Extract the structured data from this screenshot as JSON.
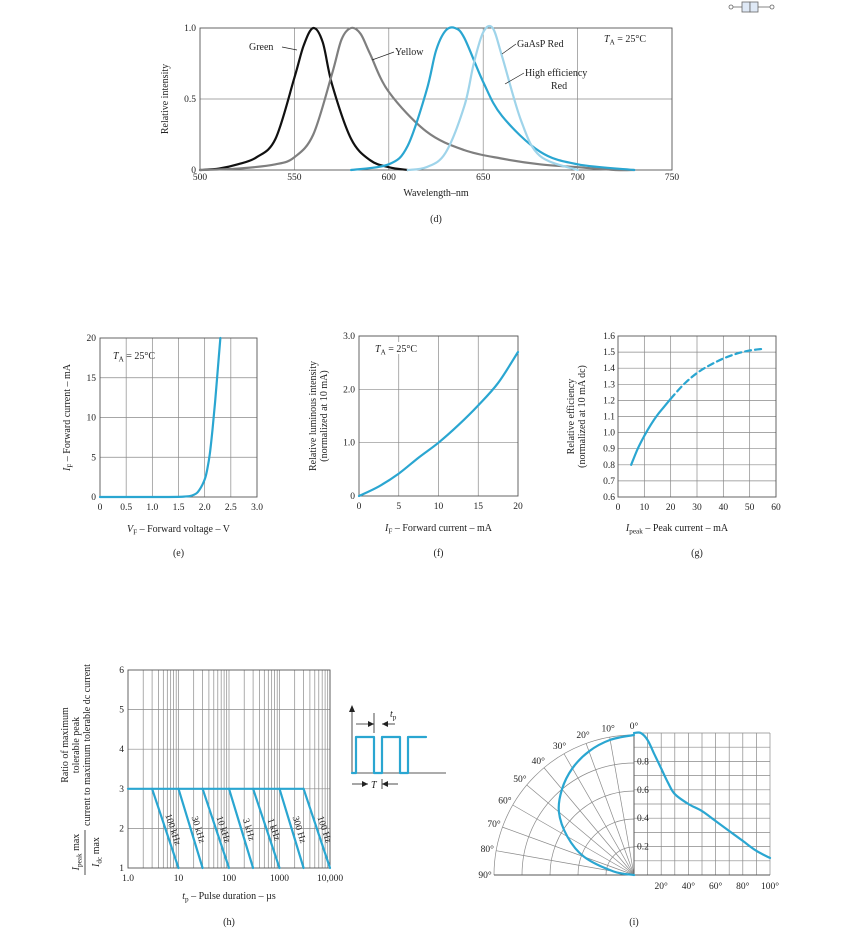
{
  "chart_data": [
    {
      "id": "d",
      "type": "line",
      "caption": "(d)",
      "annotation": "T_A = 25°C",
      "xlabel": "Wavelength–nm",
      "ylabel": "Relative intensity",
      "xlim": [
        500,
        750
      ],
      "ylim": [
        0,
        1.0
      ],
      "xticks": [
        "500",
        "550",
        "600",
        "650",
        "700",
        "750"
      ],
      "yticks": [
        "0",
        "0.5",
        "1.0"
      ],
      "grid": true,
      "colors": {
        "Green": "#111111",
        "Yellow": "#7f7f7f",
        "GaAsP Red": "#2aa6d1",
        "High efficiency Red": "#9fd4ea"
      },
      "series": [
        {
          "name": "Green",
          "x": [
            500,
            510,
            520,
            530,
            540,
            550,
            555,
            560,
            565,
            570,
            580,
            590,
            600,
            610
          ],
          "y": [
            0.0,
            0.01,
            0.04,
            0.09,
            0.22,
            0.65,
            0.88,
            1.0,
            0.9,
            0.6,
            0.22,
            0.07,
            0.02,
            0.0
          ]
        },
        {
          "name": "Yellow",
          "x": [
            500,
            520,
            540,
            550,
            560,
            570,
            575,
            580,
            585,
            590,
            600,
            620,
            640,
            660,
            680,
            700,
            720,
            730
          ],
          "y": [
            0.0,
            0.01,
            0.04,
            0.09,
            0.25,
            0.68,
            0.92,
            1.0,
            0.96,
            0.82,
            0.55,
            0.27,
            0.14,
            0.08,
            0.04,
            0.02,
            0.0,
            0.0
          ]
        },
        {
          "name": "GaAsP Red",
          "x": [
            580,
            600,
            610,
            620,
            625,
            630,
            635,
            640,
            650,
            660,
            680,
            700,
            730
          ],
          "y": [
            0.0,
            0.04,
            0.17,
            0.56,
            0.84,
            0.98,
            1.0,
            0.93,
            0.62,
            0.38,
            0.13,
            0.04,
            0.0
          ]
        },
        {
          "name": "High efficiency Red",
          "x": [
            610,
            620,
            630,
            640,
            645,
            650,
            655,
            660,
            670,
            680,
            700
          ],
          "y": [
            0.0,
            0.02,
            0.12,
            0.45,
            0.75,
            0.97,
            1.0,
            0.8,
            0.35,
            0.1,
            0.0
          ]
        }
      ],
      "labels": [
        "Green",
        "Yellow",
        "GaAsP Red",
        "High efficiency",
        "Red"
      ]
    },
    {
      "id": "e",
      "type": "line",
      "caption": "(e)",
      "annotation": "T_A = 25°C",
      "xlabel": "V_F – Forward voltage – V",
      "ylabel": "I_F – Forward current – mA",
      "xlim": [
        0,
        3.0
      ],
      "ylim": [
        0,
        20
      ],
      "xticks": [
        "0",
        "0.5",
        "1.0",
        "1.5",
        "2.0",
        "2.5",
        "3.0"
      ],
      "yticks": [
        "0",
        "5",
        "10",
        "15",
        "20"
      ],
      "grid": true,
      "series": [
        {
          "x": [
            0.0,
            1.0,
            1.6,
            1.8,
            1.9,
            2.0,
            2.05,
            2.1,
            2.15,
            2.2,
            2.25,
            2.3
          ],
          "y": [
            0.0,
            0.0,
            0.05,
            0.3,
            0.9,
            2.2,
            3.5,
            5.5,
            8.5,
            12.0,
            16.0,
            20.0
          ]
        }
      ]
    },
    {
      "id": "f",
      "type": "line",
      "caption": "(f)",
      "annotation": "T_A = 25°C",
      "xlabel": "I_F – Forward current – mA",
      "ylabel": "Relative luminous intensity (normalized at 10 mA)",
      "xlim": [
        0,
        20
      ],
      "ylim": [
        0,
        3.0
      ],
      "xticks": [
        "0",
        "5",
        "10",
        "15",
        "20"
      ],
      "yticks": [
        "0",
        "1.0",
        "2.0",
        "3.0"
      ],
      "grid": true,
      "series": [
        {
          "x": [
            0,
            2.5,
            5,
            7.5,
            10,
            12.5,
            15,
            17.5,
            20
          ],
          "y": [
            0.0,
            0.18,
            0.42,
            0.72,
            1.0,
            1.33,
            1.7,
            2.12,
            2.7
          ]
        }
      ]
    },
    {
      "id": "g",
      "type": "line",
      "caption": "(g)",
      "xlabel": "I_peak – Peak current – mA",
      "ylabel": "Relative efficiency (normalized at 10 mA dc)",
      "xlim": [
        0,
        60
      ],
      "ylim": [
        0.6,
        1.6
      ],
      "xticks": [
        "0",
        "10",
        "20",
        "30",
        "40",
        "50",
        "60"
      ],
      "yticks": [
        "0.6",
        "0.7",
        "0.8",
        "0.9",
        "1.0",
        "1.1",
        "1.2",
        "1.3",
        "1.4",
        "1.5",
        "1.6"
      ],
      "grid": true,
      "series": [
        {
          "style": "solid",
          "x": [
            5,
            7.5,
            10,
            12.5,
            15,
            17.5,
            20
          ],
          "y": [
            0.8,
            0.9,
            0.98,
            1.05,
            1.11,
            1.16,
            1.21
          ]
        },
        {
          "style": "dashed",
          "x": [
            20,
            25,
            30,
            35,
            40,
            45,
            50,
            55
          ],
          "y": [
            1.21,
            1.3,
            1.37,
            1.42,
            1.46,
            1.49,
            1.51,
            1.52
          ]
        }
      ]
    },
    {
      "id": "h",
      "type": "line",
      "caption": "(h)",
      "xlabel": "t_p – Pulse duration – µs",
      "ylabel": "Ratio of maximum tolerable peak current to maximum tolerable dc current",
      "ylabel_ratio": [
        "I_peak max",
        "I_dc max"
      ],
      "xscale": "log",
      "xlim": [
        1,
        10000
      ],
      "ylim": [
        1,
        6
      ],
      "xticks": [
        "1.0",
        "10",
        "100",
        "1000",
        "10,000"
      ],
      "yticks": [
        "1",
        "2",
        "3",
        "4",
        "5",
        "6"
      ],
      "grid": true,
      "series": [
        {
          "name": "100 kHz",
          "x": [
            3,
            10
          ],
          "y": [
            3,
            1
          ]
        },
        {
          "name": "30 kHz",
          "x": [
            10,
            30
          ],
          "y": [
            3,
            1
          ]
        },
        {
          "name": "10 kHz",
          "x": [
            30,
            100
          ],
          "y": [
            3,
            1
          ]
        },
        {
          "name": "3 kHz",
          "x": [
            100,
            300
          ],
          "y": [
            3,
            1
          ]
        },
        {
          "name": "1 kHz",
          "x": [
            300,
            1000
          ],
          "y": [
            3,
            1
          ]
        },
        {
          "name": "300 Hz",
          "x": [
            1000,
            3000
          ],
          "y": [
            3,
            1
          ]
        },
        {
          "name": "100 Hz",
          "x": [
            3000,
            10000
          ],
          "y": [
            3,
            1
          ]
        }
      ],
      "pulse_labels": {
        "tp": "t_p",
        "T": "T"
      }
    },
    {
      "id": "i",
      "type": "polar",
      "caption": "(i)",
      "angle_labels": [
        "0°",
        "10°",
        "20°",
        "30°",
        "40°",
        "50°",
        "60°",
        "70°",
        "80°",
        "90°"
      ],
      "radial_labels": [
        "0.2",
        "0.4",
        "0.6",
        "0.8"
      ],
      "bottom_labels": [
        "20°",
        "40°",
        "60°",
        "80°",
        "100°"
      ],
      "polar_series": {
        "angle_deg": [
          0,
          10,
          20,
          30,
          40,
          50,
          60,
          70,
          80,
          90
        ],
        "r": [
          1.0,
          0.98,
          0.94,
          0.88,
          0.8,
          0.7,
          0.55,
          0.38,
          0.15,
          0.0
        ]
      },
      "right_series": {
        "x_pct": [
          0,
          5,
          10,
          15,
          20,
          25,
          30,
          40,
          50,
          60,
          70,
          80,
          90,
          100
        ],
        "y": [
          1.0,
          1.0,
          0.95,
          0.85,
          0.75,
          0.65,
          0.57,
          0.5,
          0.45,
          0.38,
          0.31,
          0.24,
          0.17,
          0.12
        ]
      }
    }
  ]
}
